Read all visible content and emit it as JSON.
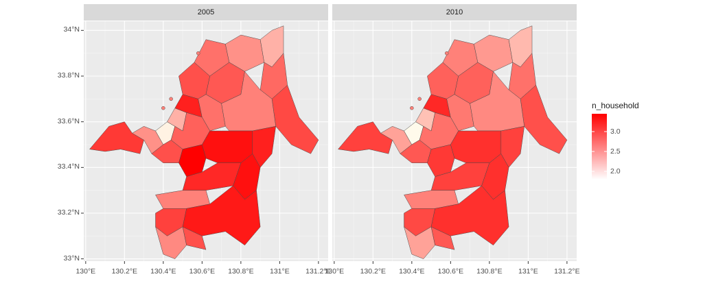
{
  "chart_data": {
    "type": "choropleth",
    "facets": [
      {
        "label": "2005"
      },
      {
        "label": "2010"
      }
    ],
    "x_ticks": [
      "130°E",
      "130.2°E",
      "130.4°E",
      "130.6°E",
      "130.8°E",
      "131°E",
      "131.2°E"
    ],
    "y_ticks": [
      "34°N",
      "33.8°N",
      "33.6°N",
      "33.4°N",
      "33.2°N",
      "33°N"
    ],
    "x_tick_values": [
      130.0,
      130.2,
      130.4,
      130.6,
      130.8,
      131.0,
      131.2
    ],
    "y_tick_values": [
      34.0,
      33.8,
      33.6,
      33.4,
      33.2,
      33.0
    ],
    "xlim": [
      129.99,
      131.25
    ],
    "ylim": [
      32.99,
      34.04
    ],
    "legend": {
      "title": "n_household",
      "breaks": [
        "3.0",
        "2.5",
        "2.0"
      ],
      "break_values": [
        3.0,
        2.5,
        2.0
      ],
      "range": [
        1.85,
        3.4
      ],
      "low_color": "#ffffff",
      "high_color": "#ff0000"
    },
    "regions_2005_description": "municipalities shaded by mean household size",
    "grid": true
  }
}
